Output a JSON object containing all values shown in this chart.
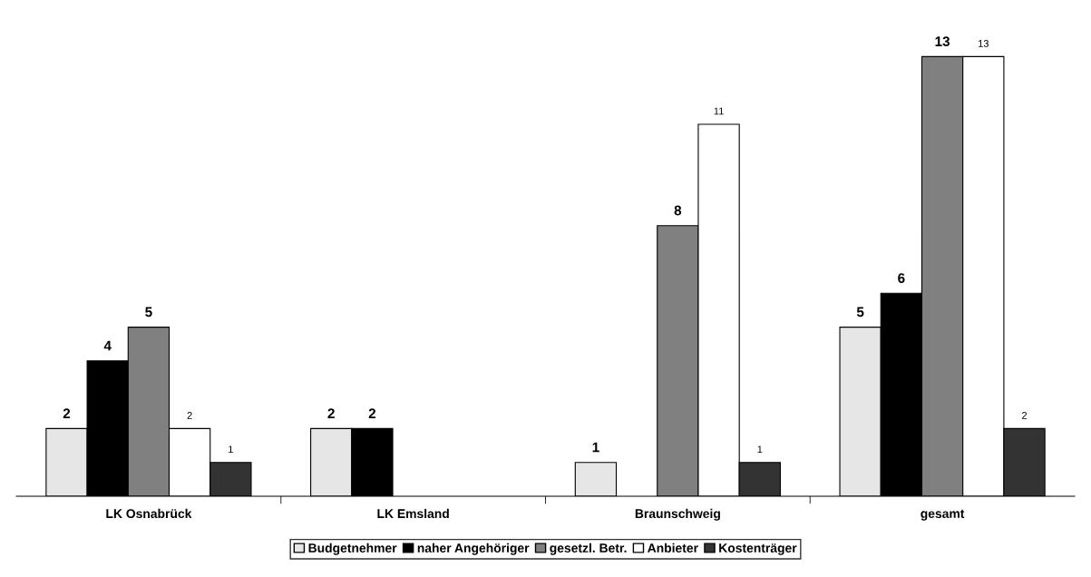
{
  "chart_data": {
    "type": "bar",
    "categories": [
      "LK Osnabrück",
      "LK Emsland",
      "Braunschweig",
      "gesamt"
    ],
    "series": [
      {
        "name": "Budgetnehmer",
        "color": "#e6e6e6",
        "values": [
          2,
          2,
          1,
          5
        ]
      },
      {
        "name": "naher Angehöriger",
        "color": "#000000",
        "values": [
          4,
          2,
          null,
          6
        ]
      },
      {
        "name": "gesetzl. Betr.",
        "color": "#808080",
        "values": [
          5,
          null,
          8,
          13
        ]
      },
      {
        "name": "Anbieter",
        "color": "#ffffff",
        "values": [
          2,
          null,
          11,
          13
        ]
      },
      {
        "name": "Kostenträger",
        "color": "#333333",
        "values": [
          1,
          null,
          1,
          2
        ]
      }
    ],
    "data_labels": true,
    "legend": "bottom",
    "tick_labels": "x",
    "grid": false
  }
}
